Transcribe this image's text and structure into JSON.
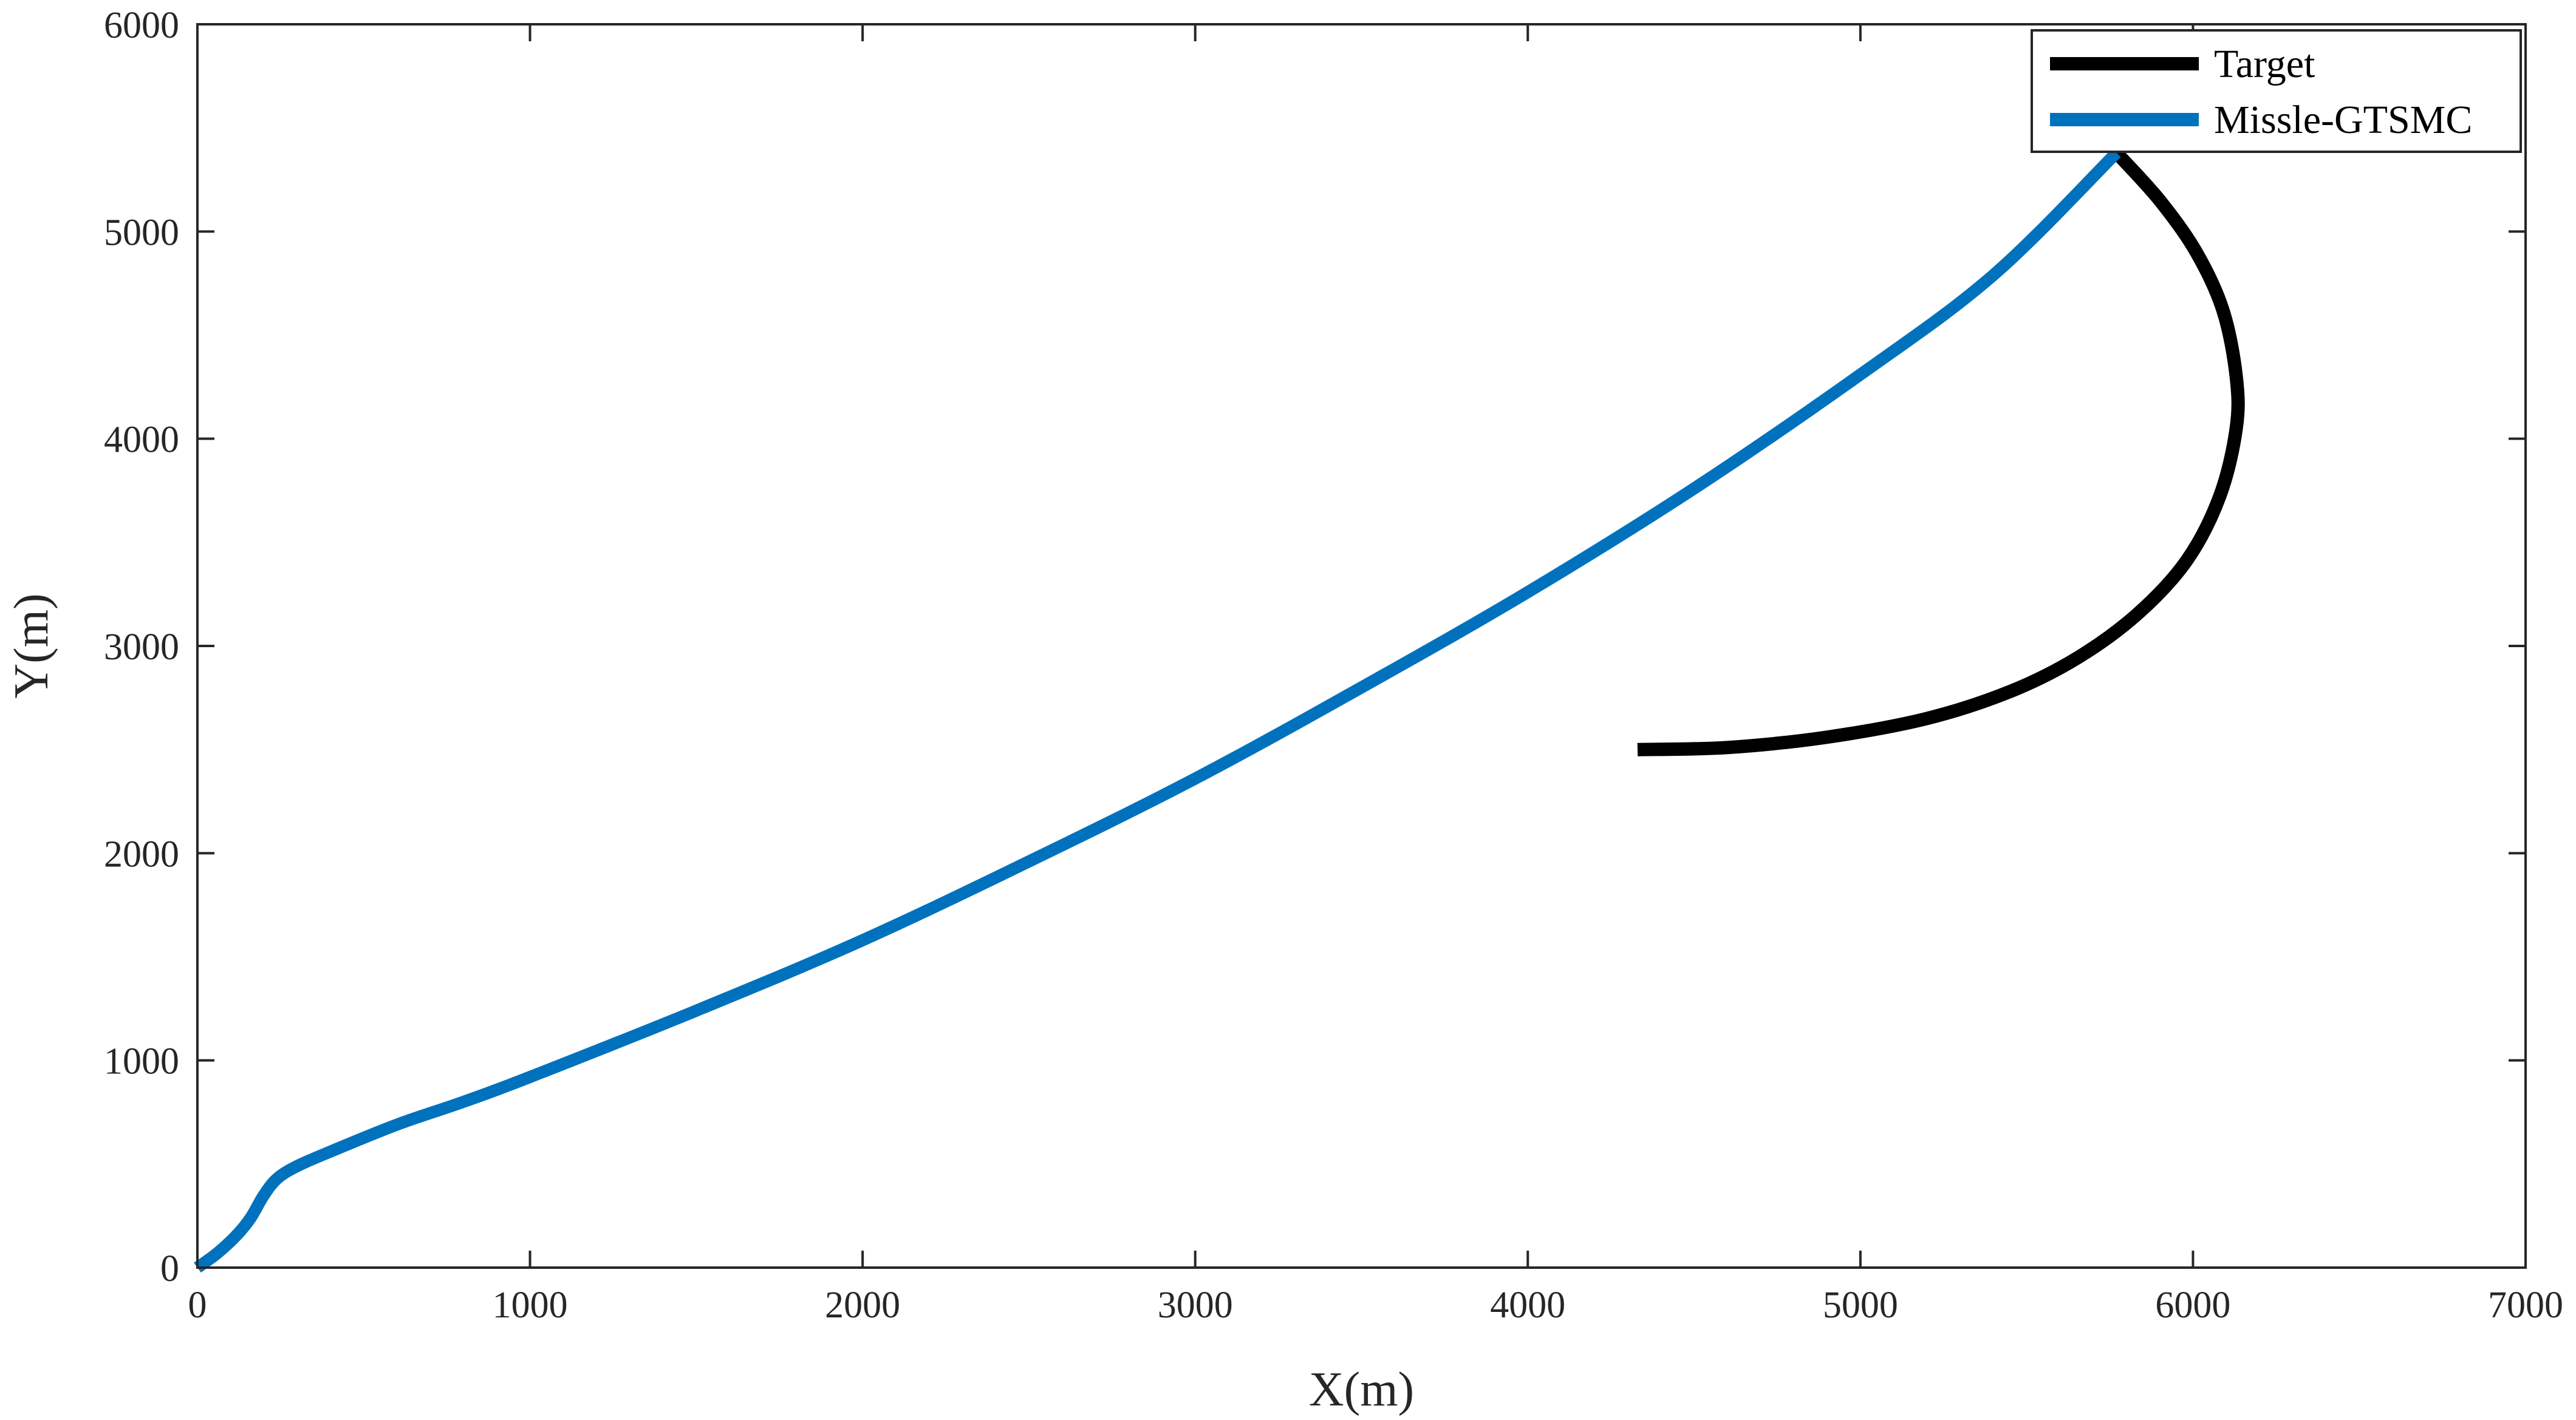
{
  "chart_data": {
    "type": "line",
    "xlabel": "X(m)",
    "ylabel": "Y(m)",
    "xlim": [
      0,
      7000
    ],
    "ylim": [
      0,
      6000
    ],
    "xticks": [
      0,
      1000,
      2000,
      3000,
      4000,
      5000,
      6000,
      7000
    ],
    "yticks": [
      0,
      1000,
      2000,
      3000,
      4000,
      5000,
      6000
    ],
    "xtick_labels": [
      "0",
      "1000",
      "2000",
      "3000",
      "4000",
      "5000",
      "6000",
      "7000"
    ],
    "ytick_labels": [
      "0",
      "1000",
      "2000",
      "3000",
      "4000",
      "5000",
      "6000"
    ],
    "grid": false,
    "legend": "top-right",
    "series": [
      {
        "name": "Target",
        "color": "#000000",
        "points": [
          [
            4330,
            2500
          ],
          [
            4600,
            2510
          ],
          [
            4900,
            2560
          ],
          [
            5200,
            2650
          ],
          [
            5450,
            2780
          ],
          [
            5650,
            2940
          ],
          [
            5830,
            3150
          ],
          [
            5980,
            3410
          ],
          [
            6080,
            3720
          ],
          [
            6130,
            4050
          ],
          [
            6130,
            4300
          ],
          [
            6090,
            4620
          ],
          [
            6010,
            4900
          ],
          [
            5900,
            5150
          ],
          [
            5770,
            5380
          ]
        ]
      },
      {
        "name": "Missle-GTSMC",
        "color": "#0072BD",
        "points": [
          [
            0,
            0
          ],
          [
            60,
            70
          ],
          [
            120,
            160
          ],
          [
            160,
            240
          ],
          [
            200,
            350
          ],
          [
            240,
            430
          ],
          [
            300,
            490
          ],
          [
            400,
            560
          ],
          [
            600,
            690
          ],
          [
            800,
            800
          ],
          [
            1000,
            920
          ],
          [
            1500,
            1240
          ],
          [
            2000,
            1580
          ],
          [
            2500,
            1960
          ],
          [
            3000,
            2360
          ],
          [
            3500,
            2800
          ],
          [
            4000,
            3260
          ],
          [
            4500,
            3760
          ],
          [
            5000,
            4310
          ],
          [
            5400,
            4790
          ],
          [
            5770,
            5380
          ]
        ]
      }
    ]
  }
}
